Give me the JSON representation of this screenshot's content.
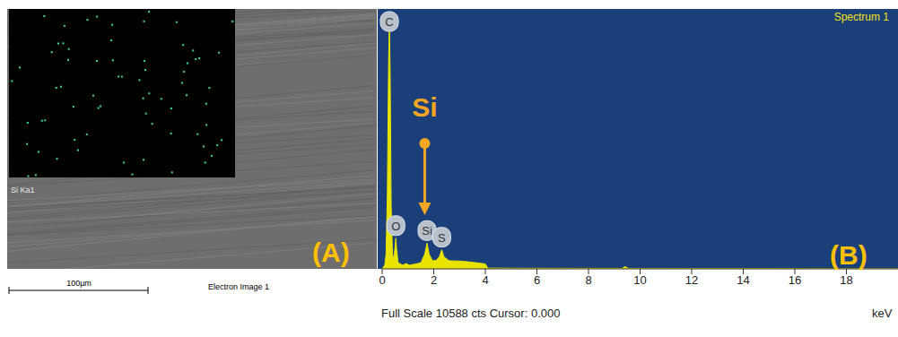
{
  "image_panel": {
    "label": "(A)",
    "map_label": "Si Ka1",
    "scale_bar": "100µm",
    "caption": "Electron Image 1"
  },
  "chart_data": {
    "type": "area",
    "title": "Spectrum 1",
    "panel_label": "(B)",
    "x_label": "keV",
    "footer": "Full Scale 10588 cts Cursor: 0.000",
    "x": [
      0,
      0.1,
      0.15,
      0.2,
      0.25,
      0.28,
      0.31,
      0.35,
      0.4,
      0.45,
      0.5,
      0.53,
      0.56,
      0.62,
      0.8,
      0.93,
      1.05,
      1.3,
      1.5,
      1.65,
      1.74,
      1.82,
      1.95,
      2.1,
      2.22,
      2.31,
      2.4,
      2.6,
      3.0,
      3.4,
      3.8,
      4.0,
      4.1,
      5,
      8,
      9.3,
      9.42,
      9.55,
      12,
      16,
      20
    ],
    "values": [
      0,
      150,
      600,
      3000,
      8500,
      10050,
      8000,
      2500,
      600,
      400,
      900,
      1250,
      800,
      250,
      150,
      220,
      150,
      200,
      250,
      600,
      1050,
      600,
      330,
      350,
      500,
      780,
      480,
      330,
      320,
      280,
      230,
      200,
      30,
      25,
      20,
      20,
      90,
      20,
      15,
      10,
      5
    ],
    "color": "#e8e400",
    "xlim": [
      0,
      20
    ],
    "ylim": [
      0,
      10588
    ],
    "xticks": [
      0,
      2,
      4,
      6,
      8,
      10,
      12,
      14,
      16,
      18
    ],
    "tick_labels": "x",
    "annotations": [
      {
        "text": "C",
        "x": 0.28
      },
      {
        "text": "O",
        "x": 0.53
      },
      {
        "text": "Si",
        "x": 1.74
      },
      {
        "text": "S",
        "x": 2.31
      }
    ],
    "callout": {
      "text": "Si",
      "x": 1.65,
      "color": "#f5a623"
    }
  }
}
